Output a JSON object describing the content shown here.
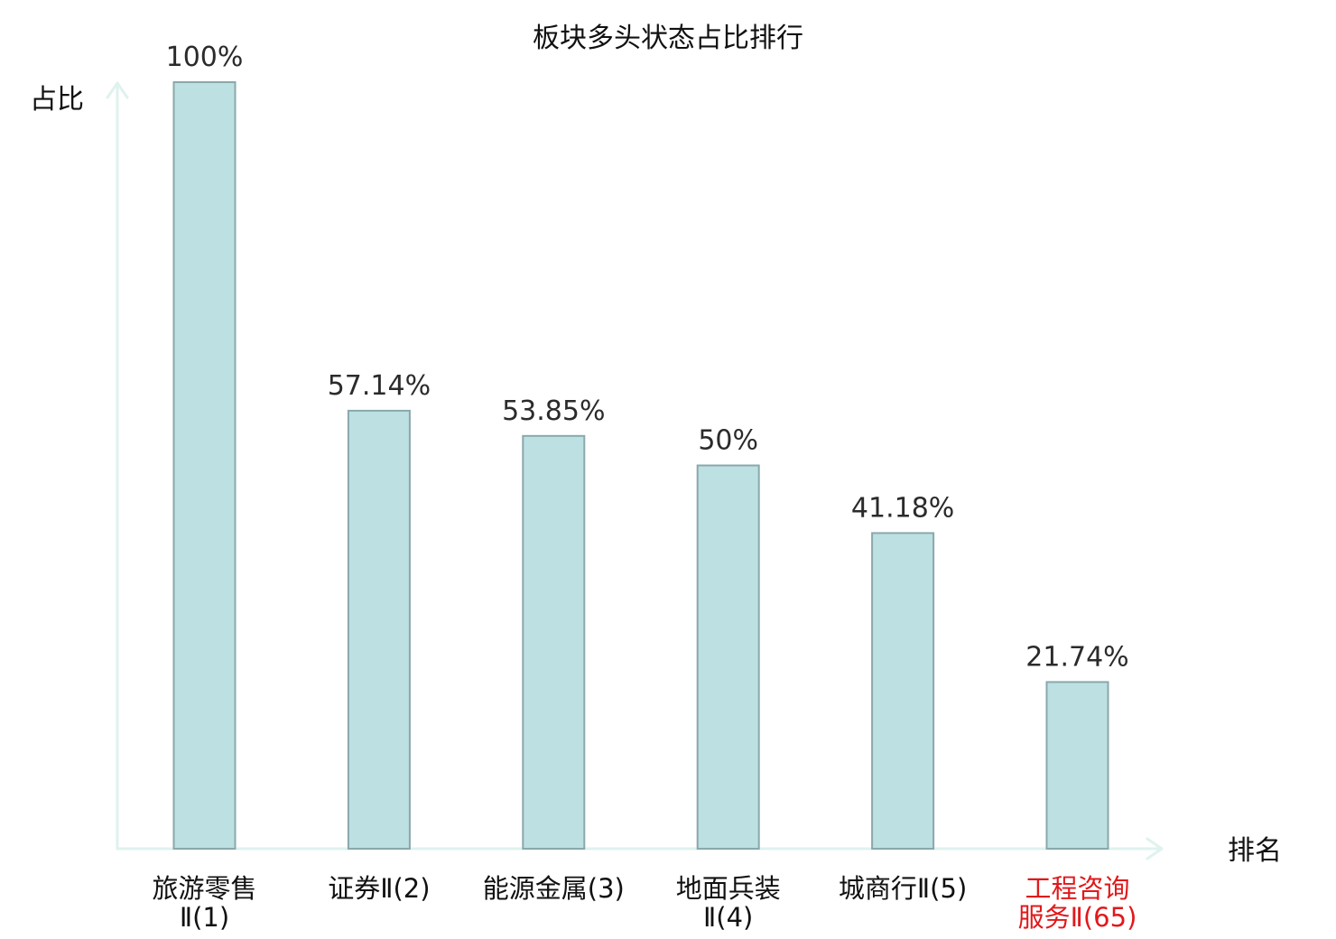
{
  "chart_data": {
    "type": "bar",
    "title": "板块多头状态占比排行",
    "xlabel": "排名",
    "ylabel": "占比",
    "ylim": [
      0,
      100
    ],
    "grid": false,
    "categories": [
      [
        "旅游零售",
        "Ⅱ(1)"
      ],
      [
        "证券Ⅱ(2)"
      ],
      [
        "能源金属(3)"
      ],
      [
        "地面兵装",
        "Ⅱ(4)"
      ],
      [
        "城商行Ⅱ(5)"
      ],
      [
        "工程咨询",
        "服务Ⅱ(65)"
      ]
    ],
    "values": [
      100,
      57.14,
      53.85,
      50,
      41.18,
      21.74
    ],
    "value_labels": [
      "100%",
      "57.14%",
      "53.85%",
      "50%",
      "41.18%",
      "21.74%"
    ],
    "highlight_index": 5,
    "colors": {
      "bar_fill": "#bde0e2",
      "bar_stroke": "#8aa8ab",
      "axis": "#dff2ef",
      "label": "#111111",
      "highlight_label": "#e0191b"
    }
  }
}
